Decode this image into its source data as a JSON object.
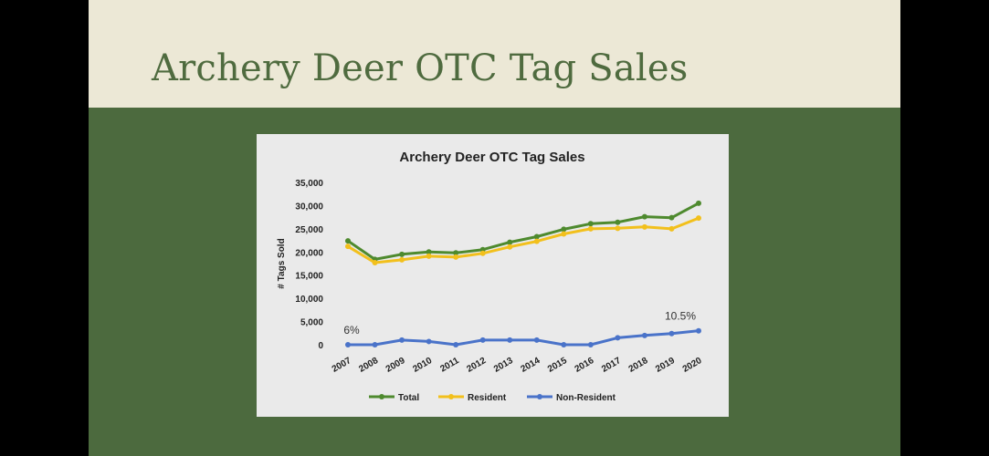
{
  "slide": {
    "title": "Archery Deer OTC Tag Sales"
  },
  "chart_data": {
    "type": "line",
    "title": "Archery Deer OTC Tag Sales",
    "xlabel": "",
    "ylabel": "# Tags Sold",
    "x": [
      "2007",
      "2008",
      "2009",
      "2010",
      "2011",
      "2012",
      "2013",
      "2014",
      "2015",
      "2016",
      "2017",
      "2018",
      "2019",
      "2020"
    ],
    "yticks": [
      "0",
      "5,000",
      "10,000",
      "15,000",
      "20,000",
      "25,000",
      "30,000",
      "35,000"
    ],
    "ylim": [
      0,
      35000
    ],
    "grid": false,
    "legend": "bottom",
    "series": [
      {
        "name": "Total",
        "color": "#4e8a2e",
        "values": [
          22400,
          18400,
          19500,
          20000,
          19800,
          20500,
          22100,
          23300,
          24900,
          26100,
          26400,
          27600,
          27400,
          30500
        ]
      },
      {
        "name": "Resident",
        "color": "#f2c01c",
        "values": [
          21200,
          17700,
          18300,
          19100,
          18900,
          19700,
          21100,
          22300,
          23900,
          25000,
          25100,
          25400,
          25000,
          27300
        ]
      },
      {
        "name": "Non-Resident",
        "color": "#4a73c9",
        "values": [
          0,
          0,
          1000,
          700,
          0,
          1000,
          1000,
          1000,
          0,
          0,
          1500,
          2000,
          2400,
          3000
        ]
      }
    ],
    "annotations": [
      {
        "text": "6%",
        "series": "Non-Resident",
        "x": "2007"
      },
      {
        "text": "10.5%",
        "series": "Non-Resident",
        "x": "2020"
      }
    ]
  }
}
